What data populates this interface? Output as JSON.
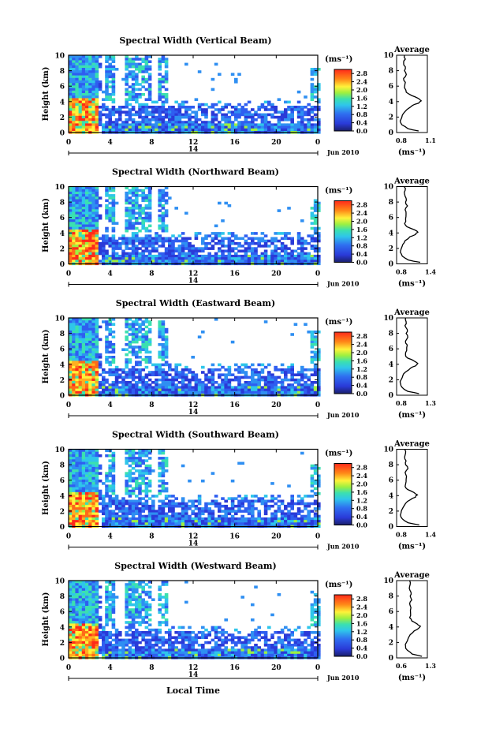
{
  "common": {
    "x_ticks": [
      "0",
      "4",
      "8",
      "12",
      "16",
      "20",
      "0"
    ],
    "y_ticks": [
      "0",
      "2",
      "4",
      "6",
      "8",
      "10"
    ],
    "ylabel": "Height (km)",
    "date_center": "14",
    "date_label": "Jun 2010",
    "xlabel": "Local Time",
    "avg_title": "Average",
    "unit": "(ms⁻¹)",
    "colorbar_ticks": [
      "0.0",
      "0.4",
      "0.8",
      "1.2",
      "1.6",
      "2.0",
      "2.4",
      "2.8"
    ],
    "colors": {
      "red": "#ff2a1a",
      "orange": "#ff8a18",
      "yellow": "#fff23a",
      "cyan": "#2fd6e6",
      "blue": "#2a4de8",
      "navy": "#1a1f6a"
    }
  },
  "chart_data": [
    {
      "type": "heatmap",
      "title": "Spectral Width (Vertical Beam)",
      "xlim": [
        0,
        24
      ],
      "ylim": [
        0,
        10
      ],
      "colorbar_range": [
        0,
        3.0
      ],
      "avg_profile": {
        "xlim_labels": [
          "0.8",
          "1.1"
        ],
        "xlim": [
          0.8,
          1.15
        ],
        "height_km": [
          0.2,
          0.5,
          1,
          1.5,
          2,
          2.5,
          3,
          3.5,
          3.8,
          4.1,
          4.4,
          4.8,
          5.2,
          5.8,
          6.5,
          7,
          7.5,
          8,
          8.5,
          9,
          9.5,
          10
        ],
        "width": [
          1.05,
          0.93,
          0.86,
          0.84,
          0.86,
          0.88,
          0.92,
          0.98,
          1.05,
          1.08,
          1.05,
          0.97,
          0.91,
          0.89,
          0.9,
          0.88,
          0.91,
          0.89,
          0.9,
          0.88,
          0.9,
          0.89
        ]
      }
    },
    {
      "type": "heatmap",
      "title": "Spectral Width (Northward Beam)",
      "xlim": [
        0,
        24
      ],
      "ylim": [
        0,
        10
      ],
      "colorbar_range": [
        0,
        3.0
      ],
      "avg_profile": {
        "xlim_labels": [
          "0.8",
          "1.4"
        ],
        "xlim": [
          0.8,
          1.45
        ],
        "height_km": [
          0.2,
          0.5,
          1,
          1.5,
          2,
          2.5,
          3,
          3.5,
          3.8,
          4.1,
          4.4,
          4.8,
          5.2,
          5.8,
          6.5,
          7,
          7.5,
          8,
          8.5,
          9,
          9.5,
          10
        ],
        "width": [
          1.3,
          1.05,
          0.92,
          0.88,
          0.9,
          0.93,
          0.98,
          1.08,
          1.2,
          1.25,
          1.18,
          1.02,
          0.97,
          0.99,
          1.0,
          0.98,
          1.03,
          0.99,
          1.0,
          0.97,
          0.98,
          0.96
        ]
      }
    },
    {
      "type": "heatmap",
      "title": "Spectral Width (Eastward Beam)",
      "xlim": [
        0,
        24
      ],
      "ylim": [
        0,
        10
      ],
      "colorbar_range": [
        0,
        3.0
      ],
      "avg_profile": {
        "xlim_labels": [
          "0.8",
          "1.3"
        ],
        "xlim": [
          0.8,
          1.35
        ],
        "height_km": [
          0.2,
          0.5,
          1,
          1.5,
          2,
          2.5,
          3,
          3.5,
          3.8,
          4.1,
          4.4,
          4.8,
          5.2,
          5.8,
          6.5,
          7,
          7.5,
          8,
          8.5,
          9,
          9.5,
          10
        ],
        "width": [
          1.2,
          1.0,
          0.9,
          0.87,
          0.88,
          0.91,
          0.96,
          1.05,
          1.14,
          1.18,
          1.12,
          1.0,
          0.96,
          0.98,
          0.99,
          0.96,
          1.0,
          0.97,
          0.99,
          0.95,
          0.97,
          0.96
        ]
      }
    },
    {
      "type": "heatmap",
      "title": "Spectral Width (Southward Beam)",
      "xlim": [
        0,
        24
      ],
      "ylim": [
        0,
        10
      ],
      "colorbar_range": [
        0,
        3.0
      ],
      "avg_profile": {
        "xlim_labels": [
          "0.8",
          "1.4"
        ],
        "xlim": [
          0.8,
          1.45
        ],
        "height_km": [
          0.2,
          0.5,
          1,
          1.5,
          2,
          2.5,
          3,
          3.5,
          3.8,
          4.1,
          4.4,
          4.8,
          5.2,
          5.8,
          6.5,
          7,
          7.5,
          8,
          8.5,
          9,
          9.5,
          10
        ],
        "width": [
          1.28,
          1.04,
          0.92,
          0.88,
          0.9,
          0.94,
          0.99,
          1.1,
          1.2,
          1.24,
          1.17,
          1.03,
          0.98,
          1.0,
          1.01,
          0.98,
          1.04,
          0.99,
          1.0,
          0.97,
          0.99,
          0.97
        ]
      }
    },
    {
      "type": "heatmap",
      "title": "Spectral Width (Westward Beam)",
      "xlim": [
        0,
        24
      ],
      "ylim": [
        0,
        10
      ],
      "colorbar_range": [
        0,
        3.0
      ],
      "avg_profile": {
        "xlim_labels": [
          "0.6",
          "1.3"
        ],
        "xlim": [
          0.6,
          1.35
        ],
        "height_km": [
          0.2,
          0.5,
          1,
          1.5,
          2,
          2.5,
          3,
          3.5,
          3.8,
          4.1,
          4.4,
          4.8,
          5.2,
          5.8,
          6.5,
          7,
          7.5,
          8,
          8.5,
          9,
          9.5,
          10
        ],
        "width": [
          1.22,
          0.98,
          0.86,
          0.82,
          0.84,
          0.88,
          0.93,
          1.03,
          1.13,
          1.18,
          1.1,
          0.97,
          0.92,
          0.94,
          0.95,
          0.92,
          0.97,
          0.93,
          0.95,
          0.91,
          0.93,
          0.92
        ]
      }
    }
  ]
}
